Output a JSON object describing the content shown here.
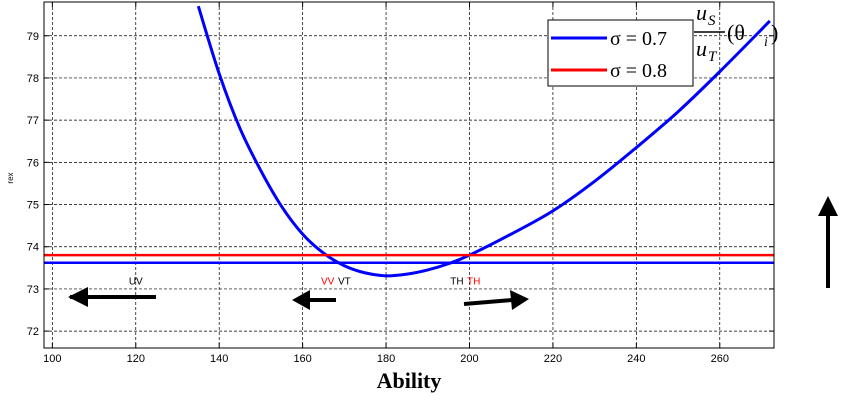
{
  "chart_data": {
    "type": "line",
    "xlabel": "Ability",
    "ylabel": "rex",
    "xlim": [
      98,
      273
    ],
    "ylim": [
      71.6,
      79.8
    ],
    "x_ticks": [
      100,
      120,
      140,
      160,
      180,
      200,
      220,
      240,
      260
    ],
    "y_ticks": [
      72,
      73,
      74,
      75,
      76,
      77,
      78,
      79
    ],
    "grid": true,
    "legend_position": "top-right",
    "legend": [
      {
        "label": "σ = 0.7",
        "color": "#0000ff"
      },
      {
        "label": "σ = 0.8",
        "color": "#ff0000"
      }
    ],
    "formula_label": {
      "numerator": "u",
      "numerator_sub": "S",
      "denominator": "u",
      "denominator_sub": "T",
      "argument": "(θ",
      "argument_sub": "i",
      "argument_close": ")"
    },
    "series": [
      {
        "type": "curve",
        "color": "#0000ff",
        "x": [
          135,
          140,
          145,
          150,
          155,
          160,
          165,
          170,
          175,
          180,
          185,
          190,
          195,
          200,
          210,
          220,
          230,
          240,
          250,
          260,
          272
        ],
        "y": [
          79.7,
          78.1,
          76.8,
          75.8,
          74.95,
          74.3,
          73.85,
          73.55,
          73.38,
          73.31,
          73.35,
          73.45,
          73.6,
          73.8,
          74.3,
          74.85,
          75.55,
          76.35,
          77.2,
          78.15,
          79.35
        ]
      },
      {
        "type": "hline",
        "color": "#0000ff",
        "y": 73.62
      },
      {
        "type": "hline",
        "color": "#ff0000",
        "y": 73.8
      }
    ],
    "annotations": [
      {
        "text": "UV",
        "x": 120,
        "y": 73.2,
        "color": "#000000"
      },
      {
        "text": "VV",
        "x": 166,
        "y": 73.2,
        "color": "#ff0000"
      },
      {
        "text": "VT",
        "x": 170,
        "y": 73.2,
        "color": "#000000"
      },
      {
        "text": "TH",
        "x": 197,
        "y": 73.2,
        "color": "#000000"
      },
      {
        "text": "TH",
        "x": 201,
        "y": 73.2,
        "color": "#ff0000"
      }
    ]
  }
}
